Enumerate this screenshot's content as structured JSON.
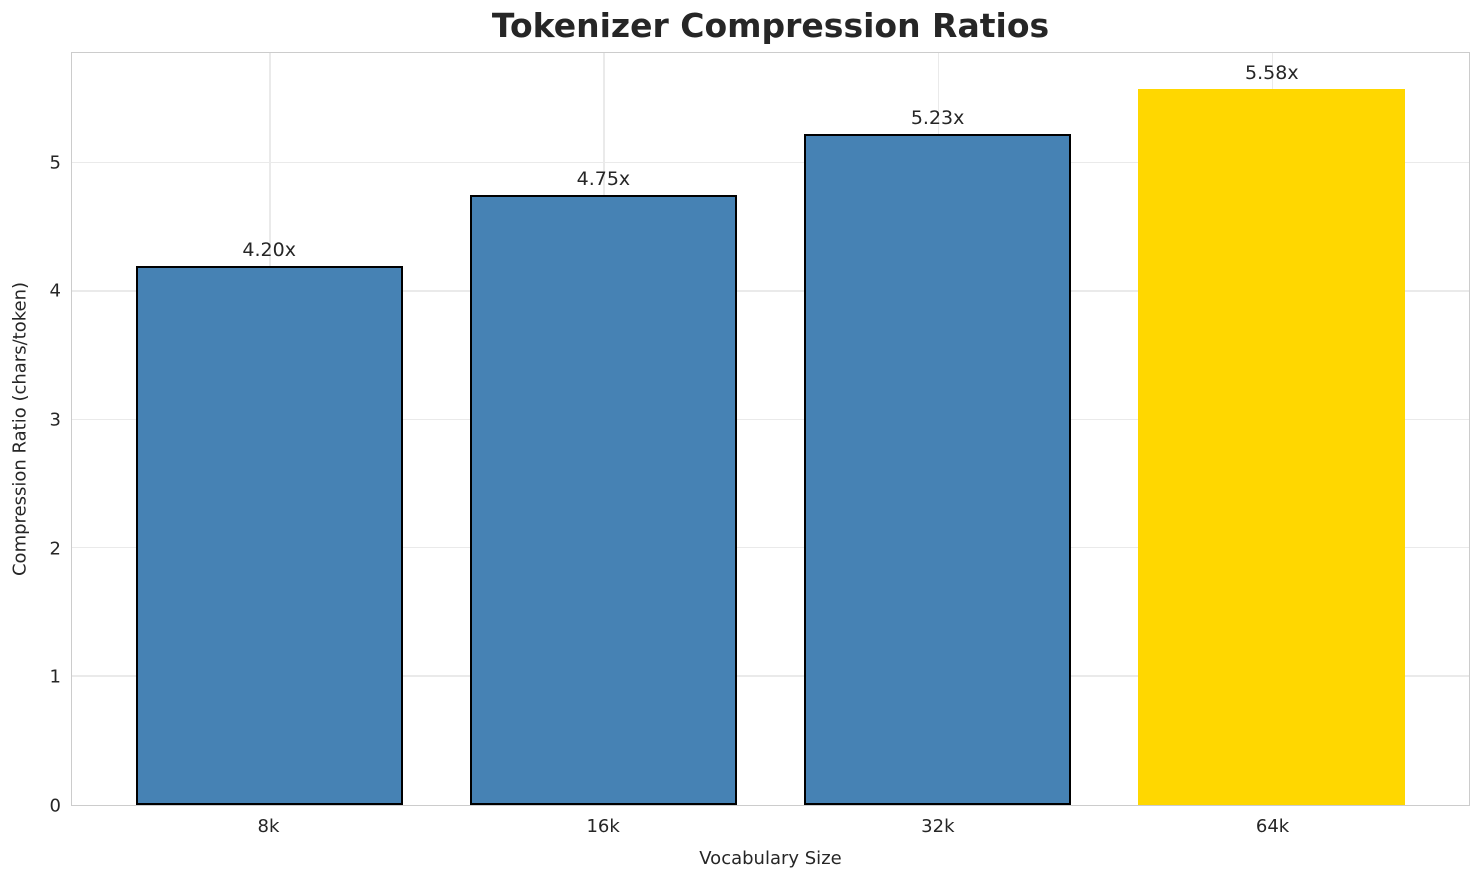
{
  "chart_data": {
    "type": "bar",
    "title": "Tokenizer Compression Ratios",
    "xlabel": "Vocabulary Size",
    "ylabel": "Compression Ratio (chars/token)",
    "categories": [
      "8k",
      "16k",
      "32k",
      "64k"
    ],
    "values": [
      4.2,
      4.75,
      5.23,
      5.58
    ],
    "bar_labels": [
      "4.20x",
      "4.75x",
      "5.23x",
      "5.58x"
    ],
    "yticks": [
      0,
      1,
      2,
      3,
      4,
      5
    ],
    "ylim": [
      0,
      5.86
    ],
    "grid": true,
    "legend": "none",
    "bar_width_ratio": 0.8,
    "colors": {
      "bar_fill": [
        "#4682B4",
        "#4682B4",
        "#4682B4",
        "#FFD700"
      ],
      "bar_edge": [
        "#000000",
        "#000000",
        "#000000",
        "none"
      ],
      "highlight": "#FFD700",
      "base": "#4682B4",
      "text": "#262626",
      "grid": "#eaeaea",
      "spine": "#cccccc",
      "background": "#ffffff"
    }
  }
}
